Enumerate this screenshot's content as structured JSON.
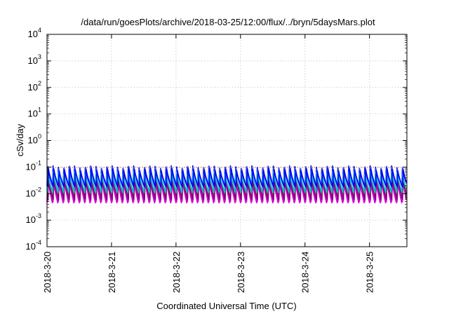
{
  "chart_data": {
    "type": "line",
    "title": "/data/run/goesPlots/archive/2018-03-25/12:00/flux/../bryn/5daysMars.plot",
    "xlabel": "Coordinated Universal Time (UTC)",
    "ylabel": "cSv/day",
    "y_scale": "log",
    "ylim": [
      0.0001,
      10000
    ],
    "y_ticks": [
      {
        "exp": "4",
        "value": 10000
      },
      {
        "exp": "3",
        "value": 1000
      },
      {
        "exp": "2",
        "value": 100
      },
      {
        "exp": "1",
        "value": 10
      },
      {
        "exp": "0",
        "value": 1
      },
      {
        "exp": "-1",
        "value": 0.1
      },
      {
        "exp": "-2",
        "value": 0.01
      },
      {
        "exp": "-3",
        "value": 0.001
      },
      {
        "exp": "-4",
        "value": 0.0001
      }
    ],
    "y_tick_base": "10",
    "xlim": [
      "2018-03-20 00:00",
      "2018-03-25 14:00"
    ],
    "x_ticks": [
      "2018-3-20",
      "2018-3-21",
      "2018-3-22",
      "2018-3-23",
      "2018-3-24",
      "2018-3-25"
    ],
    "x_tick_days": [
      0,
      1,
      2,
      3,
      4,
      5
    ],
    "x_span_days": 5.58,
    "grid": true,
    "legend": "none",
    "reference_line": {
      "value": 0.1,
      "color": "#ff0000",
      "style": "dotted"
    },
    "cycle_period_hours": 2,
    "series": [
      {
        "color": "#0000ff",
        "peak": 0.1,
        "trough": 0.02
      },
      {
        "color": "#3366cc",
        "peak": 0.095,
        "trough": 0.019
      },
      {
        "color": "#ff00ff",
        "peak": 0.045,
        "trough": 0.005
      },
      {
        "color": "#cc00cc",
        "peak": 0.04,
        "trough": 0.0045
      },
      {
        "color": "#a0522d",
        "peak": 0.05,
        "trough": 0.007
      },
      {
        "color": "#800080",
        "peak": 0.035,
        "trough": 0.006
      },
      {
        "color": "#40e0d0",
        "peak": 0.06,
        "trough": 0.012
      },
      {
        "color": "#00bfbf",
        "peak": 0.055,
        "trough": 0.011
      },
      {
        "color": "#0000ff",
        "peak": 0.08,
        "trough": 0.018
      }
    ]
  }
}
